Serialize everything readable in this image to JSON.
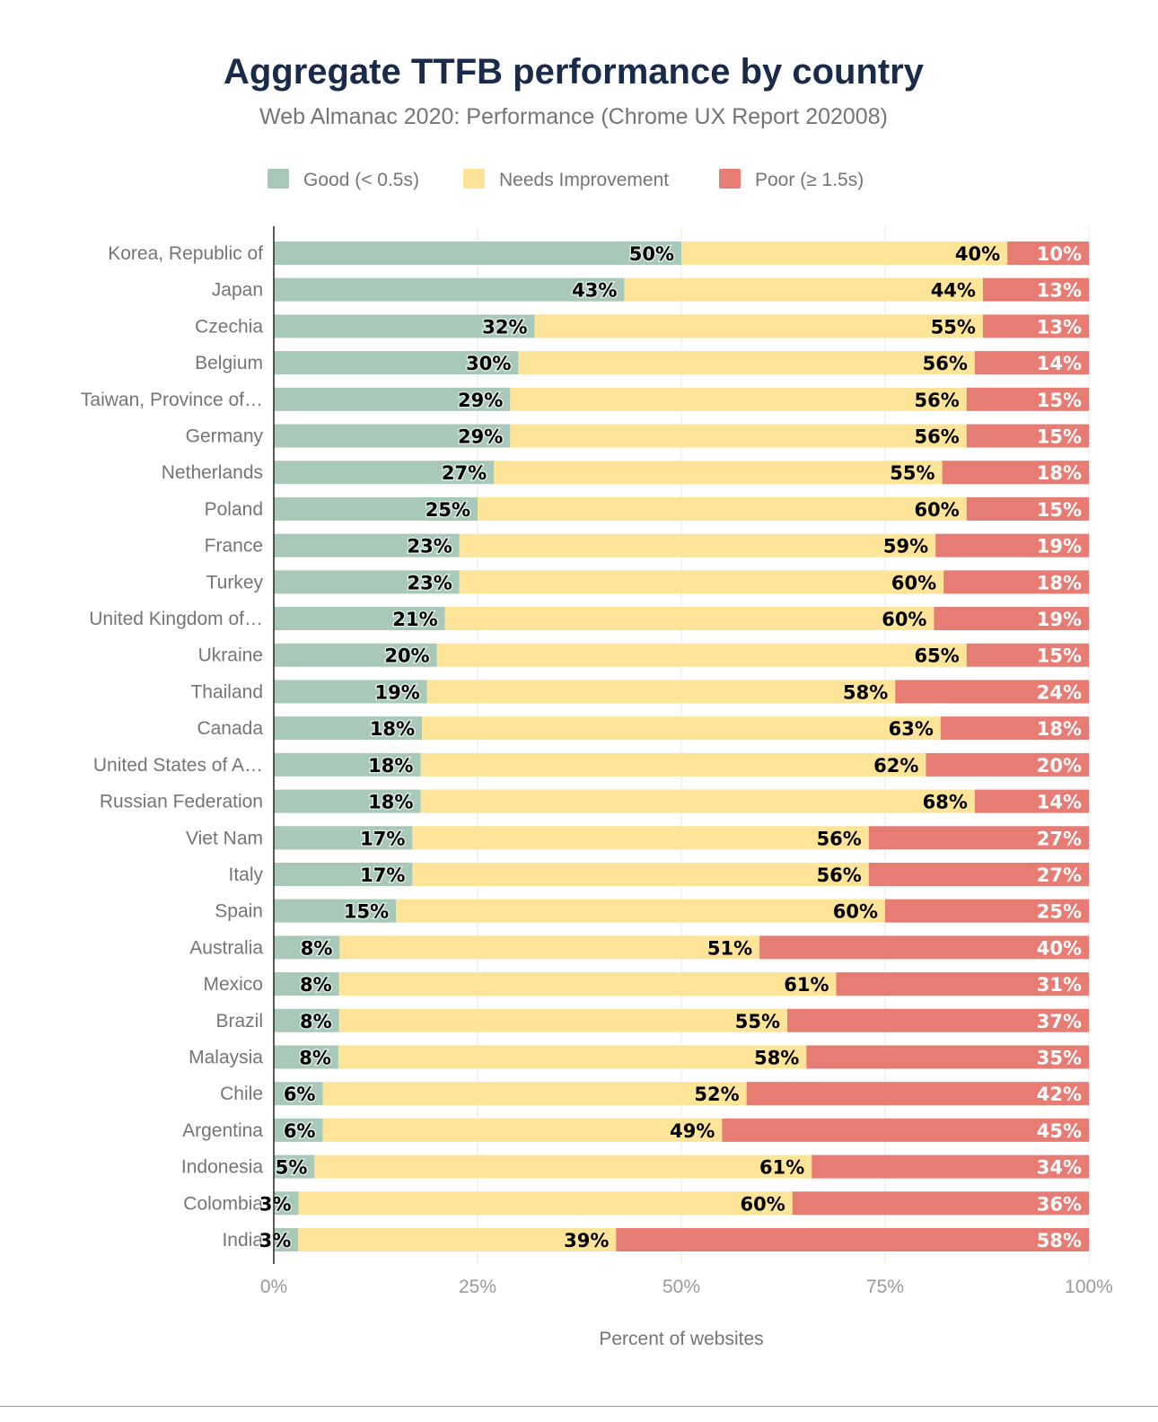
{
  "chart_data": {
    "type": "bar",
    "orientation": "horizontal",
    "stacked": true,
    "title": "Aggregate TTFB performance by country",
    "subtitle": "Web Almanac 2020: Performance (Chrome UX Report 202008)",
    "xlabel": "Percent of websites",
    "ylabel": "",
    "xlim": [
      0,
      100
    ],
    "xticks": [
      "0%",
      "25%",
      "50%",
      "75%",
      "100%"
    ],
    "grid": true,
    "legend_position": "top",
    "categories": [
      "Korea, Republic of",
      "Japan",
      "Czechia",
      "Belgium",
      "Taiwan, Province of…",
      "Germany",
      "Netherlands",
      "Poland",
      "France",
      "Turkey",
      "United Kingdom of…",
      "Ukraine",
      "Thailand",
      "Canada",
      "United States of A…",
      "Russian Federation",
      "Viet Nam",
      "Italy",
      "Spain",
      "Australia",
      "Mexico",
      "Brazil",
      "Malaysia",
      "Chile",
      "Argentina",
      "Indonesia",
      "Colombia",
      "India"
    ],
    "series": [
      {
        "name": "Good (< 0.5s)",
        "color": "#a8c8b8",
        "label_color": "#000000",
        "values": [
          50,
          43,
          32,
          30,
          29,
          29,
          27,
          25,
          23,
          23,
          21,
          20,
          19,
          18,
          18,
          18,
          17,
          17,
          15,
          8,
          8,
          8,
          8,
          6,
          6,
          5,
          3,
          3
        ]
      },
      {
        "name": "Needs Improvement",
        "color": "#fde498",
        "label_color": "#000000",
        "values": [
          40,
          44,
          55,
          56,
          56,
          56,
          55,
          60,
          59,
          60,
          60,
          65,
          58,
          63,
          62,
          68,
          56,
          56,
          60,
          51,
          61,
          55,
          58,
          52,
          49,
          61,
          60,
          39
        ]
      },
      {
        "name": "Poor (≥ 1.5s)",
        "color": "#e67c73",
        "label_color": "#ffffff",
        "values": [
          10,
          13,
          13,
          14,
          15,
          15,
          18,
          15,
          19,
          18,
          19,
          15,
          24,
          18,
          20,
          14,
          27,
          27,
          25,
          40,
          31,
          37,
          35,
          42,
          45,
          34,
          36,
          58
        ]
      }
    ]
  }
}
